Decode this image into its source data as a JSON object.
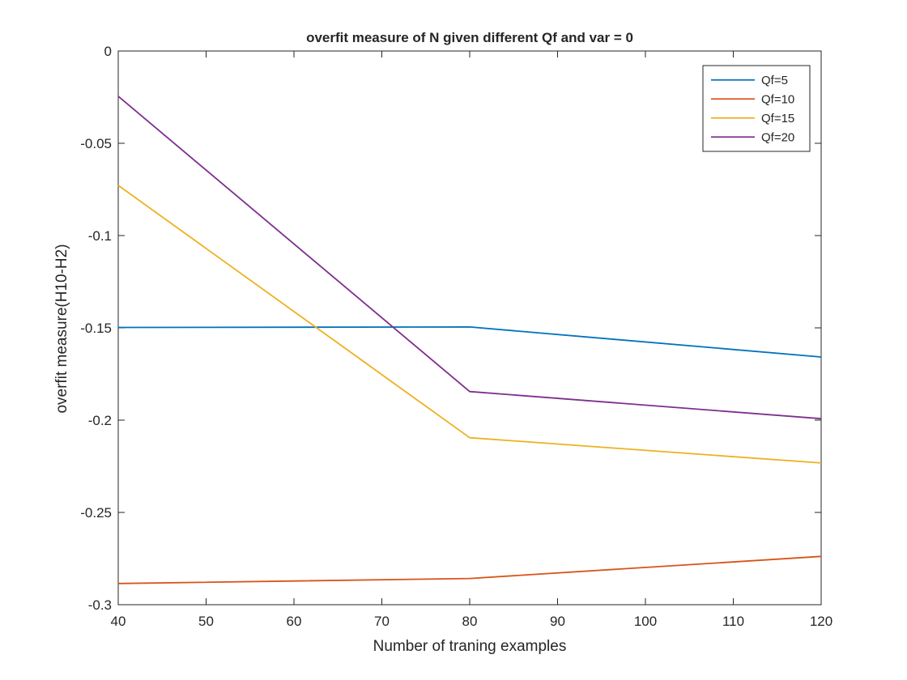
{
  "chart_data": {
    "type": "line",
    "title": "overfit measure of N given different Qf and var = 0",
    "xlabel": "Number of traning examples",
    "ylabel": "overfit measure(H10-H2)",
    "xlim": [
      40,
      120
    ],
    "ylim": [
      -0.3,
      0
    ],
    "x_ticks": [
      40,
      50,
      60,
      70,
      80,
      90,
      100,
      110,
      120
    ],
    "x_tick_labels": [
      "40",
      "50",
      "60",
      "70",
      "80",
      "90",
      "100",
      "110",
      "120"
    ],
    "y_ticks": [
      0,
      -0.05,
      -0.1,
      -0.15,
      -0.2,
      -0.25,
      -0.3
    ],
    "y_tick_labels": [
      "0",
      "-0.05",
      "-0.1",
      "-0.15",
      "-0.2",
      "-0.25",
      "-0.3"
    ],
    "grid": false,
    "legend_position": "top-right",
    "x": [
      40,
      80,
      120
    ],
    "series": [
      {
        "name": "Qf=5",
        "color": "#0072BD",
        "values": [
          -0.1498,
          -0.1495,
          -0.1658
        ]
      },
      {
        "name": "Qf=10",
        "color": "#D95319",
        "values": [
          -0.2885,
          -0.2858,
          -0.2738
        ]
      },
      {
        "name": "Qf=15",
        "color": "#EDB120",
        "values": [
          -0.0728,
          -0.2095,
          -0.2232
        ]
      },
      {
        "name": "Qf=20",
        "color": "#7E2F8E",
        "values": [
          -0.0245,
          -0.1845,
          -0.1992
        ]
      }
    ]
  }
}
